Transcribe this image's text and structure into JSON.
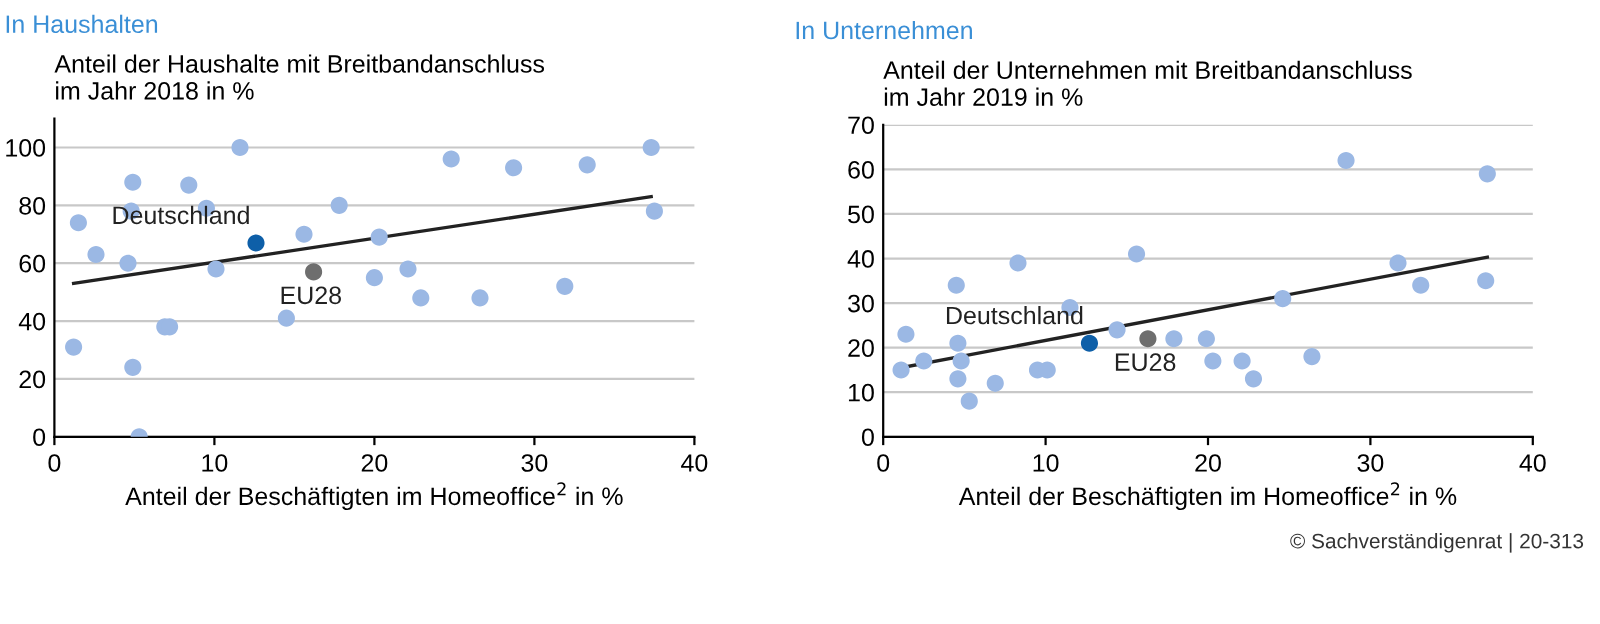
{
  "chart_data": [
    {
      "type": "scatter",
      "title": "In Haushalten",
      "ylabel": "Anteil der Haushalte mit Breitbandanschluss\nim Jahr 2018 in %",
      "xlabel": "Anteil der Beschäftigten im Homeoffice$^{2}$ in %",
      "xlim": [
        0,
        40
      ],
      "xticks": [
        0,
        10,
        20,
        30,
        40
      ],
      "ylim": [
        0,
        110
      ],
      "yticks": [
        0,
        20,
        40,
        60,
        80,
        100
      ],
      "grid": "y",
      "marker": "circle",
      "series": [
        {
          "color": "#9bb8e4",
          "x": [
            1.2,
            1.5,
            2.6,
            4.6,
            4.8,
            4.9,
            4.9,
            5.3,
            6.9,
            7.2,
            8.4,
            9.5,
            10.1,
            11.6,
            14.5,
            15.6,
            17.8,
            20.0,
            20.3,
            22.1,
            22.9,
            24.8,
            26.6,
            28.7,
            31.9,
            33.3,
            37.3,
            37.5
          ],
          "values": [
            31,
            74,
            63,
            60,
            78,
            88,
            24,
            0,
            38,
            38,
            87,
            79,
            58,
            100,
            41,
            70,
            80,
            55,
            69,
            58,
            48,
            96,
            48,
            93,
            52,
            94,
            100,
            78
          ]
        },
        {
          "name": "Deutschland",
          "color": "#0e5fa8",
          "x": [
            12.6
          ],
          "values": [
            67
          ]
        },
        {
          "name": "EU28",
          "color": "#6e6e6e",
          "x": [
            16.2
          ],
          "values": [
            57
          ]
        },
        {
          "type": "line",
          "marker": "none",
          "color": "#222222",
          "x": [
            1.2,
            37.3
          ],
          "values": [
            53,
            83
          ]
        }
      ]
    },
    {
      "type": "scatter",
      "title": "In Unternehmen",
      "ylabel": "Anteil der Unternehmen mit Breitbandanschluss\nim Jahr 2019 in %",
      "xlabel": "Anteil der Beschäftigten im Homeoffice$^{2}$ in %",
      "xlim": [
        0,
        40
      ],
      "xticks": [
        0,
        10,
        20,
        30,
        40
      ],
      "ylim": [
        0,
        70
      ],
      "yticks": [
        0,
        10,
        20,
        30,
        40,
        50,
        60,
        70
      ],
      "grid": "y",
      "marker": "circle",
      "annotations": [
        "© Sachverständigenrat | 20-313"
      ],
      "series": [
        {
          "color": "#9bb8e4",
          "x": [
            1.1,
            1.4,
            2.5,
            4.5,
            4.6,
            4.6,
            4.8,
            5.3,
            6.9,
            8.3,
            9.5,
            10.1,
            11.5,
            14.4,
            15.6,
            17.9,
            19.9,
            20.3,
            22.1,
            22.8,
            24.6,
            26.4,
            28.5,
            31.7,
            33.1,
            37.1,
            37.2
          ],
          "values": [
            15,
            23,
            17,
            34,
            21,
            13,
            17,
            8,
            12,
            39,
            15,
            15,
            29,
            24,
            41,
            22,
            22,
            17,
            17,
            13,
            31,
            18,
            62,
            39,
            34,
            35,
            59
          ]
        },
        {
          "name": "Deutschland",
          "color": "#0e5fa8",
          "x": [
            12.7
          ],
          "values": [
            21
          ]
        },
        {
          "name": "EU28",
          "color": "#6e6e6e",
          "x": [
            16.3
          ],
          "values": [
            22
          ]
        },
        {
          "type": "line",
          "marker": "none",
          "color": "#222222",
          "x": [
            1.1,
            37.2
          ],
          "values": [
            15.5,
            40.3
          ]
        }
      ]
    }
  ]
}
